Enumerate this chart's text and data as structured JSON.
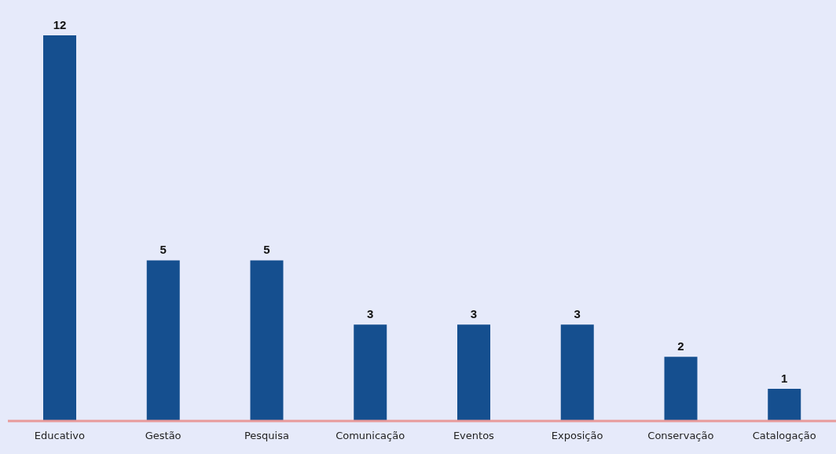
{
  "chart_data": {
    "type": "bar",
    "categories": [
      "Educativo",
      "Gestão",
      "Pesquisa",
      "Comunicação",
      "Eventos",
      "Exposição",
      "Conservação",
      "Catalogação"
    ],
    "values": [
      12,
      5,
      5,
      3,
      3,
      3,
      2,
      1
    ],
    "color": "#154f8f",
    "data_labels": true
  }
}
